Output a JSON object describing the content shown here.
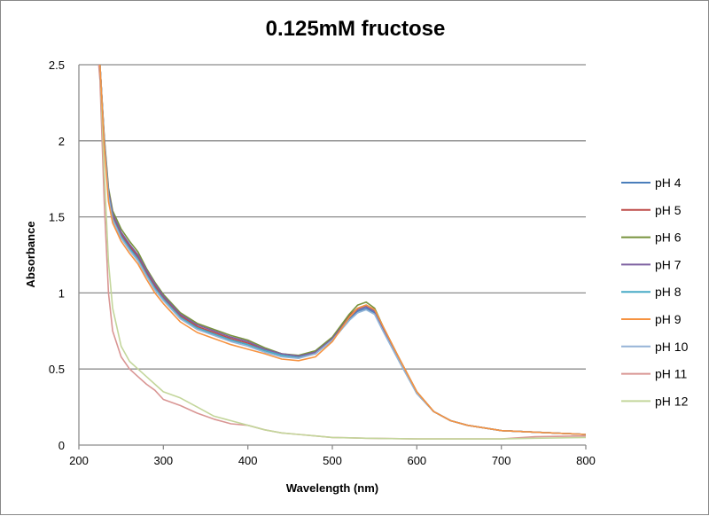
{
  "chart_data": {
    "type": "line",
    "title": "0.125mM fructose",
    "xlabel": "Wavelength (nm)",
    "ylabel": "Absorbance",
    "xlim": [
      200,
      800
    ],
    "ylim": [
      0,
      2.5
    ],
    "xticks": [
      200,
      300,
      400,
      500,
      600,
      700,
      800
    ],
    "yticks": [
      0,
      0.5,
      1,
      1.5,
      2,
      2.5
    ],
    "ytick_labels": [
      "0",
      "0.5",
      "1",
      "1.5",
      "2",
      "2.5"
    ],
    "grid": "horizontal",
    "legend": "right",
    "x": [
      222,
      225,
      230,
      235,
      240,
      250,
      260,
      270,
      280,
      290,
      300,
      320,
      340,
      360,
      380,
      400,
      420,
      440,
      460,
      480,
      500,
      520,
      530,
      540,
      550,
      560,
      580,
      600,
      620,
      640,
      660,
      700,
      740,
      800
    ],
    "series": [
      {
        "name": "pH 4",
        "color": "#4a7ebb",
        "values": [
          2.6,
          2.5,
          2.0,
          1.65,
          1.5,
          1.38,
          1.3,
          1.23,
          1.13,
          1.04,
          0.96,
          0.84,
          0.77,
          0.73,
          0.69,
          0.66,
          0.62,
          0.59,
          0.575,
          0.6,
          0.69,
          0.83,
          0.88,
          0.9,
          0.87,
          0.76,
          0.55,
          0.34,
          0.22,
          0.16,
          0.13,
          0.095,
          0.085,
          0.07
        ]
      },
      {
        "name": "pH 5",
        "color": "#be4b48",
        "values": [
          2.6,
          2.5,
          2.01,
          1.66,
          1.51,
          1.39,
          1.31,
          1.24,
          1.14,
          1.05,
          0.97,
          0.85,
          0.78,
          0.74,
          0.7,
          0.67,
          0.63,
          0.6,
          0.585,
          0.61,
          0.7,
          0.85,
          0.9,
          0.92,
          0.89,
          0.77,
          0.56,
          0.35,
          0.22,
          0.16,
          0.13,
          0.095,
          0.085,
          0.07
        ]
      },
      {
        "name": "pH 6",
        "color": "#77933c",
        "values": [
          2.6,
          2.5,
          2.03,
          1.69,
          1.54,
          1.42,
          1.34,
          1.27,
          1.16,
          1.07,
          0.99,
          0.87,
          0.8,
          0.76,
          0.72,
          0.69,
          0.64,
          0.6,
          0.59,
          0.62,
          0.71,
          0.86,
          0.92,
          0.94,
          0.9,
          0.78,
          0.56,
          0.35,
          0.22,
          0.16,
          0.13,
          0.095,
          0.085,
          0.07
        ]
      },
      {
        "name": "pH 7",
        "color": "#7d60a0",
        "values": [
          2.6,
          2.5,
          2.02,
          1.67,
          1.52,
          1.4,
          1.32,
          1.25,
          1.15,
          1.06,
          0.98,
          0.86,
          0.79,
          0.75,
          0.71,
          0.68,
          0.63,
          0.6,
          0.585,
          0.61,
          0.7,
          0.84,
          0.89,
          0.91,
          0.88,
          0.77,
          0.55,
          0.34,
          0.22,
          0.16,
          0.13,
          0.095,
          0.085,
          0.07
        ]
      },
      {
        "name": "pH 8",
        "color": "#46aac5",
        "values": [
          2.6,
          2.5,
          2.0,
          1.64,
          1.49,
          1.37,
          1.29,
          1.22,
          1.12,
          1.03,
          0.96,
          0.84,
          0.77,
          0.73,
          0.69,
          0.66,
          0.62,
          0.59,
          0.575,
          0.6,
          0.69,
          0.82,
          0.87,
          0.89,
          0.86,
          0.75,
          0.54,
          0.34,
          0.22,
          0.16,
          0.13,
          0.095,
          0.085,
          0.07
        ]
      },
      {
        "name": "pH 9",
        "color": "#f69240",
        "values": [
          2.6,
          2.5,
          1.97,
          1.6,
          1.46,
          1.34,
          1.26,
          1.19,
          1.09,
          1.0,
          0.93,
          0.81,
          0.74,
          0.7,
          0.66,
          0.63,
          0.6,
          0.565,
          0.555,
          0.58,
          0.68,
          0.84,
          0.9,
          0.92,
          0.89,
          0.78,
          0.56,
          0.35,
          0.22,
          0.16,
          0.13,
          0.095,
          0.085,
          0.07
        ]
      },
      {
        "name": "pH 10",
        "color": "#95b3d7",
        "values": [
          2.6,
          2.5,
          1.99,
          1.63,
          1.48,
          1.36,
          1.28,
          1.21,
          1.11,
          1.02,
          0.95,
          0.83,
          0.76,
          0.72,
          0.68,
          0.65,
          0.61,
          0.58,
          0.57,
          0.6,
          0.69,
          0.82,
          0.87,
          0.89,
          0.86,
          0.75,
          0.54,
          0.34,
          0.22,
          0.16,
          0.13,
          0.095,
          0.085,
          0.07
        ]
      },
      {
        "name": "pH 11",
        "color": "#d99694",
        "values": [
          2.6,
          2.4,
          1.6,
          1.0,
          0.75,
          0.58,
          0.5,
          0.45,
          0.4,
          0.36,
          0.3,
          0.26,
          0.21,
          0.17,
          0.14,
          0.13,
          0.1,
          0.08,
          0.07,
          0.06,
          0.05,
          0.048,
          0.046,
          0.045,
          0.044,
          0.043,
          0.042,
          0.04,
          0.04,
          0.04,
          0.04,
          0.04,
          0.055,
          0.06
        ]
      },
      {
        "name": "pH 12",
        "color": "#c3d69b",
        "values": [
          2.6,
          2.5,
          1.8,
          1.2,
          0.9,
          0.65,
          0.55,
          0.5,
          0.45,
          0.4,
          0.35,
          0.31,
          0.25,
          0.19,
          0.16,
          0.13,
          0.1,
          0.08,
          0.07,
          0.06,
          0.05,
          0.048,
          0.046,
          0.045,
          0.044,
          0.043,
          0.042,
          0.04,
          0.04,
          0.04,
          0.04,
          0.04,
          0.045,
          0.05
        ]
      }
    ]
  }
}
